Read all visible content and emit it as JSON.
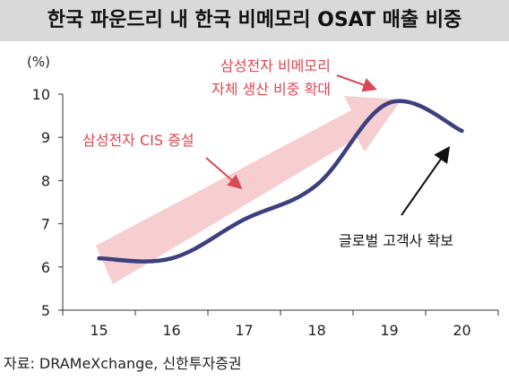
{
  "header": {
    "title": "한국 파운드리 내 한국 비메모리 OSAT 매출 비중"
  },
  "chart_data": {
    "type": "line",
    "title": "한국 파운드리 내 한국 비메모리 OSAT 매출 비중",
    "unit_label": "(%)",
    "x": [
      "15",
      "16",
      "17",
      "18",
      "19",
      "20"
    ],
    "series": [
      {
        "values": [
          6.2,
          6.2,
          7.1,
          7.9,
          9.8,
          9.15
        ]
      }
    ],
    "ylim": [
      5,
      10
    ],
    "yticks": [
      "5",
      "6",
      "7",
      "8",
      "9",
      "10"
    ],
    "grid": false,
    "annotations": [
      {
        "text": "삼성전자 CIS 증설"
      },
      {
        "text_lines": [
          "삼성전자 비메모리",
          "자체 생산 비중 확대"
        ]
      },
      {
        "text": "글로벌 고객사 확보"
      }
    ],
    "colors": {
      "line": "#3d3f7e",
      "trend_arrow": "#f6cdd0",
      "annotation_text": "#e64550",
      "annotation_arrow": "#d84a53",
      "black_arrow": "#111111"
    }
  },
  "source": "자료: DRAMeXchange, 신한투자증권"
}
